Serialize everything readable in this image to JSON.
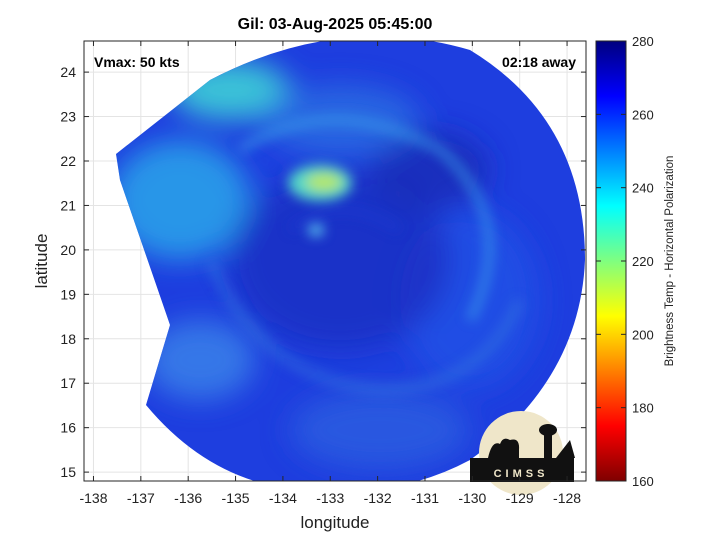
{
  "chart_data": {
    "type": "heatmap",
    "title": "Gil: 03-Aug-2025 05:45:00",
    "annotations": {
      "vmax": "Vmax: 50 kts",
      "time_away": "02:18 away"
    },
    "xlabel": "longitude",
    "ylabel": "latitude",
    "xlim": [
      -138.2,
      -127.6
    ],
    "ylim": [
      14.8,
      24.7
    ],
    "xticks": [
      -138,
      -137,
      -136,
      -135,
      -134,
      -133,
      -132,
      -131,
      -130,
      -129,
      -128
    ],
    "yticks": [
      15,
      16,
      17,
      18,
      19,
      20,
      21,
      22,
      23,
      24
    ],
    "grid": true,
    "colorbar": {
      "label": "Brightness Temp - Horizontal Polarization",
      "range": [
        160,
        280
      ],
      "ticks": [
        160,
        180,
        200,
        220,
        240,
        260,
        280
      ],
      "colormap": "jet"
    },
    "features": [
      {
        "description": "warm core",
        "lon": -133.1,
        "lat": 21.5,
        "value": 232
      },
      {
        "description": "northwest band",
        "lon": -134.8,
        "lat": 23.6,
        "value": 242
      },
      {
        "description": "swath background",
        "lon": -132.7,
        "lat": 19.6,
        "value": 262
      }
    ],
    "logo_text": "CIMSS"
  }
}
